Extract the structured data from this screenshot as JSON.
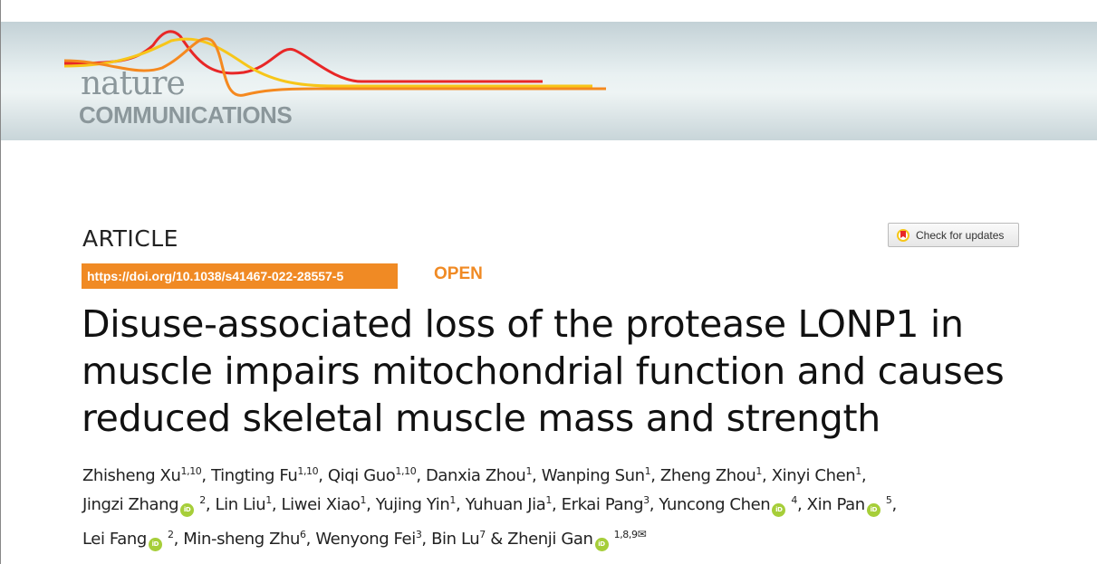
{
  "journal": {
    "name_line1": "nature",
    "name_line2": "COMMUNICATIONS"
  },
  "article_type": "ARTICLE",
  "doi": "https://doi.org/10.1038/s41467-022-28557-5",
  "access": "OPEN",
  "check_updates": "Check for updates",
  "title_lines": [
    "Disuse-associated loss of the protease LONP1 in",
    "muscle impairs mitochondrial function and causes",
    "reduced skeletal muscle mass and strength"
  ],
  "authors": [
    [
      {
        "name": "Zhisheng Xu",
        "sup": "1,10",
        "sep": ", "
      },
      {
        "name": "Tingting Fu",
        "sup": "1,10",
        "sep": ", "
      },
      {
        "name": "Qiqi Guo",
        "sup": "1,10",
        "sep": ", "
      },
      {
        "name": "Danxia Zhou",
        "sup": "1",
        "sep": ", "
      },
      {
        "name": "Wanping Sun",
        "sup": "1",
        "sep": ", "
      },
      {
        "name": "Zheng Zhou",
        "sup": "1",
        "sep": ", "
      },
      {
        "name": "Xinyi Chen",
        "sup": "1",
        "sep": ","
      }
    ],
    [
      {
        "name": "Jingzi Zhang",
        "orcid": true,
        "sup": " 2",
        "sep": ", "
      },
      {
        "name": "Lin Liu",
        "sup": "1",
        "sep": ", "
      },
      {
        "name": "Liwei Xiao",
        "sup": "1",
        "sep": ", "
      },
      {
        "name": "Yujing Yin",
        "sup": "1",
        "sep": ", "
      },
      {
        "name": "Yuhuan Jia",
        "sup": "1",
        "sep": ", "
      },
      {
        "name": "Erkai Pang",
        "sup": "3",
        "sep": ", "
      },
      {
        "name": "Yuncong Chen",
        "orcid": true,
        "sup": " 4",
        "sep": ", "
      },
      {
        "name": "Xin Pan",
        "orcid": true,
        "sup": " 5",
        "sep": ","
      }
    ],
    [
      {
        "name": "Lei Fang",
        "orcid": true,
        "sup": " 2",
        "sep": ", "
      },
      {
        "name": "Min-sheng Zhu",
        "sup": "6",
        "sep": ", "
      },
      {
        "name": "Wenyong Fei",
        "sup": "3",
        "sep": ", "
      },
      {
        "name": "Bin Lu",
        "sup": "7",
        "sep": " & "
      },
      {
        "name": "Zhenji Gan",
        "orcid": true,
        "sup": " 1,8,9",
        "sep": "",
        "mail": true
      }
    ]
  ],
  "orcid_label": "iD",
  "mail_glyph": "✉",
  "colors": {
    "accent": "#f08a24",
    "orcid": "#a6ce39",
    "logo_gray": "#8b979b"
  }
}
